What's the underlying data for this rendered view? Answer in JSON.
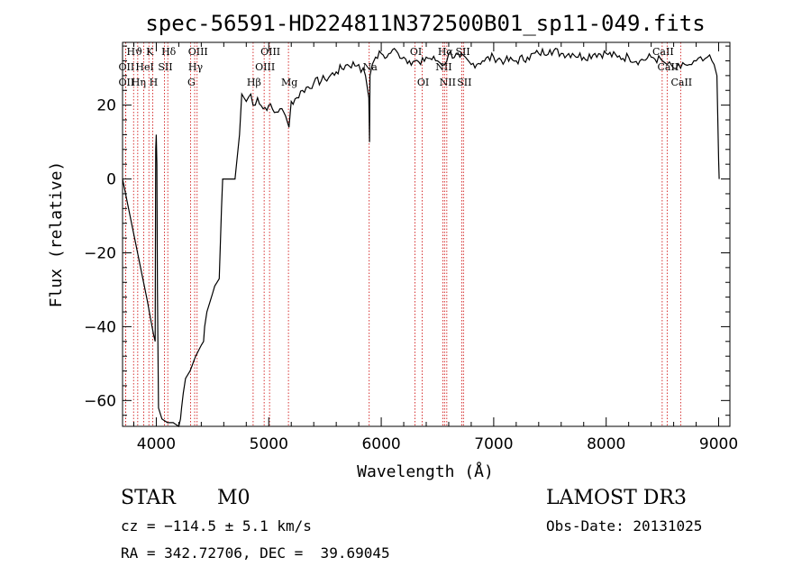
{
  "chart_data": {
    "type": "line",
    "title": "spec-56591-HD224811N372500B01_sp11-049.fits",
    "xlabel": "Wavelength (Å)",
    "ylabel": "Flux (relative)",
    "xlim": [
      3700,
      9100
    ],
    "ylim": [
      -67,
      37
    ],
    "xticks": [
      4000,
      5000,
      6000,
      7000,
      8000,
      9000
    ],
    "yticks": [
      -60,
      -40,
      -20,
      0,
      20
    ],
    "grid": false,
    "series": [
      {
        "x": [
          3700,
          3720,
          3760,
          3800,
          3840,
          3880,
          3920,
          3950,
          3975,
          3990,
          3995,
          4000,
          4005,
          4010,
          4020,
          4050,
          4100,
          4150,
          4200,
          4215,
          4225,
          4240,
          4260,
          4300,
          4350,
          4400,
          4420,
          4430,
          4450,
          4480,
          4500,
          4520,
          4540,
          4560,
          4580,
          4590,
          4600,
          4700,
          4740,
          4760,
          4800,
          4840,
          4860,
          4900,
          4950,
          5000,
          5050,
          5100,
          5150,
          5180,
          5200,
          5250,
          5300,
          5400,
          5500,
          5600,
          5700,
          5800,
          5860,
          5890,
          5896,
          5900,
          5920,
          5950,
          6000,
          6050,
          6100,
          6150,
          6200,
          6250,
          6300,
          6350,
          6400,
          6500,
          6563,
          6600,
          6700,
          6800,
          6900,
          7000,
          7100,
          7200,
          7300,
          7400,
          7500,
          7600,
          7700,
          7800,
          7900,
          8000,
          8100,
          8200,
          8300,
          8400,
          8500,
          8542,
          8600,
          8662,
          8700,
          8760,
          8800,
          8860,
          8900,
          8960,
          8985,
          9000,
          9005
        ],
        "y": [
          0,
          -3,
          -9,
          -15,
          -21,
          -27,
          -33,
          -38,
          -42,
          -44,
          8,
          12,
          4,
          -30,
          -62,
          -65,
          -66,
          -66,
          -67,
          -65,
          -62,
          -58,
          -54,
          -52,
          -48,
          -45,
          -44,
          -40,
          -36,
          -33,
          -31,
          -29,
          -28,
          -27,
          -8,
          0,
          0,
          0,
          12,
          23,
          21,
          23,
          20,
          22,
          19,
          20,
          18,
          19,
          17,
          14,
          21,
          22,
          24,
          26,
          27,
          29,
          31,
          31,
          28,
          22,
          10,
          28,
          31,
          33,
          34,
          33,
          35,
          34,
          33,
          32,
          32,
          31,
          33,
          32,
          31,
          34,
          33,
          31,
          32,
          33,
          32,
          32,
          33,
          34,
          35,
          34,
          34,
          33,
          34,
          34,
          33,
          33,
          32,
          33,
          32,
          31,
          30,
          30,
          31,
          31,
          32,
          32,
          33,
          31,
          28,
          5,
          0
        ]
      }
    ],
    "annotations": [
      {
        "label": "Hϑ",
        "wavelength": 3798,
        "row": 1
      },
      {
        "label": "OII",
        "wavelength": 3727,
        "row": 2
      },
      {
        "label": "OII",
        "wavelength": 3727,
        "row": 3
      },
      {
        "label": "Hη",
        "wavelength": 3835,
        "row": 3
      },
      {
        "label": "K",
        "wavelength": 3934,
        "row": 1
      },
      {
        "label": "HeI",
        "wavelength": 3889,
        "row": 2
      },
      {
        "label": "H",
        "wavelength": 3968,
        "row": 3
      },
      {
        "label": "Hδ",
        "wavelength": 4102,
        "row": 1
      },
      {
        "label": "SII",
        "wavelength": 4072,
        "row": 2
      },
      {
        "label": "OIII",
        "wavelength": 4363,
        "row": 1
      },
      {
        "label": "Hγ",
        "wavelength": 4341,
        "row": 2
      },
      {
        "label": "G",
        "wavelength": 4304,
        "row": 3
      },
      {
        "label": "Hβ",
        "wavelength": 4861,
        "row": 3
      },
      {
        "label": "OIII",
        "wavelength": 5007,
        "row": 1
      },
      {
        "label": "OIII",
        "wavelength": 4959,
        "row": 2
      },
      {
        "label": "Mg",
        "wavelength": 5175,
        "row": 3
      },
      {
        "label": "Na",
        "wavelength": 5893,
        "row": 2
      },
      {
        "label": "OI",
        "wavelength": 6300,
        "row": 1
      },
      {
        "label": "OI",
        "wavelength": 6364,
        "row": 3
      },
      {
        "label": "NII",
        "wavelength": 6548,
        "row": 2
      },
      {
        "label": "NII",
        "wavelength": 6583,
        "row": 3
      },
      {
        "label": "Hα",
        "wavelength": 6563,
        "row": 1
      },
      {
        "label": "SII",
        "wavelength": 6717,
        "row": 1
      },
      {
        "label": "SII",
        "wavelength": 6731,
        "row": 3
      },
      {
        "label": "CaII",
        "wavelength": 8498,
        "row": 1
      },
      {
        "label": "CaII",
        "wavelength": 8542,
        "row": 2
      },
      {
        "label": "CaII",
        "wavelength": 8662,
        "row": 3
      }
    ]
  },
  "info": {
    "class": "STAR",
    "subclass": "M0",
    "survey": "LAMOST DR3",
    "cz": "cz = −114.5 ± 5.1 km/s",
    "obs_date": "Obs-Date: 20131025",
    "radec": "RA = 342.72706, DEC =  39.69045"
  },
  "colors": {
    "line": "#000000",
    "marker": "#cc0000"
  }
}
